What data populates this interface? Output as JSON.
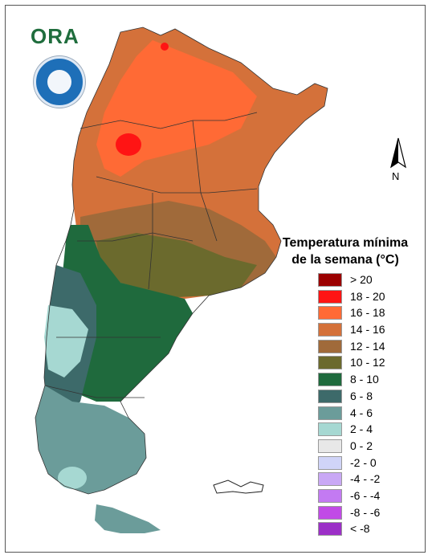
{
  "logo": {
    "text": "ORA",
    "icon": "ora-logo-icon"
  },
  "badge": {
    "icon": "smn-emblem-icon"
  },
  "north": {
    "label": "N",
    "icon": "north-arrow-icon"
  },
  "legend": {
    "title_line1": "Temperatura mínima",
    "title_line2": "de la semana (°C)",
    "items": [
      {
        "label": "> 20",
        "color": "#9b0000"
      },
      {
        "label": "18 - 20",
        "color": "#ff1414"
      },
      {
        "label": "16 - 18",
        "color": "#ff6a35"
      },
      {
        "label": "14 - 16",
        "color": "#d4713a"
      },
      {
        "label": "12 - 14",
        "color": "#a06a3a"
      },
      {
        "label": "10 - 12",
        "color": "#6b6a2d"
      },
      {
        "label": "8 - 10",
        "color": "#1f6a3d"
      },
      {
        "label": "6 - 8",
        "color": "#3d6a6a"
      },
      {
        "label": "4 - 6",
        "color": "#6b9c9a"
      },
      {
        "label": "2 - 4",
        "color": "#a6d8d2"
      },
      {
        "label": "0 - 2",
        "color": "#e8e8e8"
      },
      {
        "label": "-2 - 0",
        "color": "#d0d4f8"
      },
      {
        "label": "-4 - -2",
        "color": "#c9a8f5"
      },
      {
        "label": "-6 - -4",
        "color": "#c37af2"
      },
      {
        "label": "-8 - -6",
        "color": "#c14ae6"
      },
      {
        "label": "< -8",
        "color": "#9c2fc7"
      }
    ]
  }
}
